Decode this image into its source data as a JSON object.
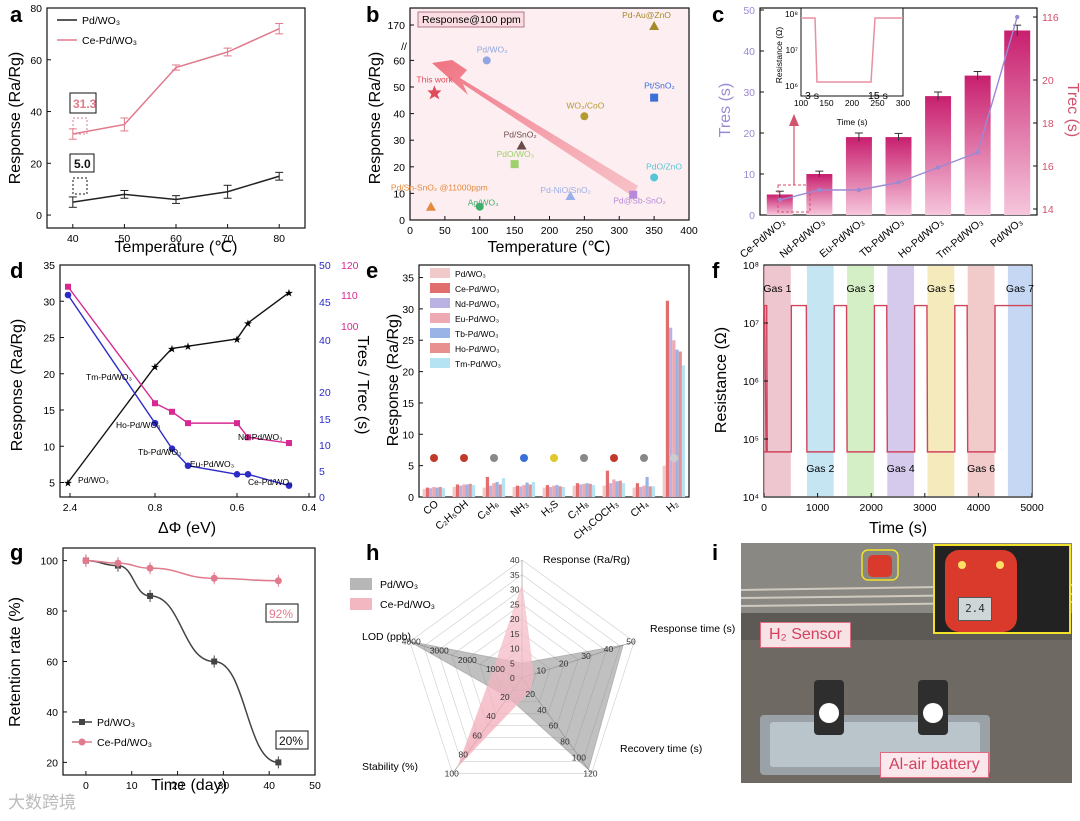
{
  "panels": {
    "a": "a",
    "b": "b",
    "c": "c",
    "d": "d",
    "e": "e",
    "f": "f",
    "g": "g",
    "h": "h",
    "i": "i"
  },
  "chart_data": [
    {
      "id": "a",
      "type": "line",
      "title": "",
      "xlabel": "Temperature (℃)",
      "ylabel": "Response (Ra/Rg)",
      "x": [
        40,
        50,
        60,
        70,
        80
      ],
      "xlim": [
        35,
        85
      ],
      "ylim": [
        -5,
        80
      ],
      "xticks": [
        "40",
        "50",
        "60",
        "70",
        "80"
      ],
      "yticks": [
        "0",
        "20",
        "40",
        "60",
        "80"
      ],
      "series": [
        {
          "name": "Pd/WO₃",
          "color": "#222222",
          "values": [
            5.0,
            8,
            6,
            9,
            15
          ],
          "errors": [
            2,
            1.5,
            1.5,
            2.5,
            1.5
          ]
        },
        {
          "name": "Ce-Pd/WO₃",
          "color": "#e07a8c",
          "values": [
            31.3,
            35,
            57,
            63,
            72
          ],
          "errors": [
            2,
            2.5,
            1,
            1.5,
            2
          ]
        }
      ],
      "annotations": [
        "31.3",
        "5.0"
      ]
    },
    {
      "id": "b",
      "type": "scatter",
      "title": "Response@100 ppm",
      "xlabel": "Temperature (℃)",
      "ylabel": "Response (Ra/Rg)",
      "xlim": [
        0,
        400
      ],
      "xticks": [
        "0",
        "50",
        "100",
        "150",
        "200",
        "250",
        "300",
        "350",
        "400"
      ],
      "yticks": [
        "0",
        "10",
        "20",
        "30",
        "40",
        "50",
        "60",
        "170"
      ],
      "points": [
        {
          "name": "This work",
          "x": 35,
          "y": 48,
          "color": "#e04b5a"
        },
        {
          "name": "Pd/WO₃",
          "x": 110,
          "y": 60,
          "color": "#8fa6e0"
        },
        {
          "name": "Pd-Au@ZnO",
          "x": 350,
          "y": 169,
          "color": "#a58a2b"
        },
        {
          "name": "Pt/SnO₂",
          "x": 350,
          "y": 46,
          "color": "#3c6fd8"
        },
        {
          "name": "WO₃/CoO",
          "x": 250,
          "y": 39,
          "color": "#b49b2f"
        },
        {
          "name": "Pd/SnO₂",
          "x": 160,
          "y": 28,
          "color": "#6b4a4a"
        },
        {
          "name": "PdO/WO₃",
          "x": 150,
          "y": 21,
          "color": "#9dcf6b"
        },
        {
          "name": "PdO/ZnO",
          "x": 350,
          "y": 16,
          "color": "#53c7d6"
        },
        {
          "name": "Pd-NiO/SnO₂",
          "x": 230,
          "y": 9,
          "color": "#9bb0e8"
        },
        {
          "name": "Pd@Sb-SnO₂",
          "x": 320,
          "y": 9.5,
          "color": "#b68ad8"
        },
        {
          "name": "Ag/WO₃",
          "x": 100,
          "y": 5,
          "color": "#3fae6a"
        },
        {
          "name": "Pd/Sn-SnO₂ @11000ppm",
          "x": 30,
          "y": 5,
          "color": "#e48a3f"
        }
      ]
    },
    {
      "id": "c",
      "type": "bar",
      "ylabel": "Tres (s)",
      "y2label": "Trec (s)",
      "categories": [
        "Ce-Pd/WO₃",
        "Nd-Pd/WO₃",
        "Eu-Pd/WO₃",
        "Tb-Pd/WO₃",
        "Ho-Pd/WO₃",
        "Tm-Pd/WO₃",
        "Pd/WO₃"
      ],
      "values": [
        5,
        10,
        19,
        19,
        29,
        34,
        45
      ],
      "errors": [
        0.8,
        0.7,
        1,
        0.9,
        1,
        1,
        1.3
      ],
      "line_values": [
        14.6,
        15.0,
        15.0,
        15.3,
        15.9,
        16.5,
        115
      ],
      "ylim": [
        0,
        50
      ],
      "yticks": [
        "0",
        "10",
        "20",
        "30",
        "40",
        "50"
      ],
      "y2ticks": [
        "14",
        "16",
        "18",
        "20",
        "116"
      ],
      "inset": {
        "ylabel": "Resistance (Ω)",
        "xlabel": "Time (s)",
        "xticks": [
          "100",
          "150",
          "200",
          "250",
          "300"
        ],
        "yticks": [
          "10⁶",
          "10⁷",
          "10⁸"
        ],
        "labels": [
          "3 s",
          "15 s"
        ]
      }
    },
    {
      "id": "d",
      "type": "line",
      "xlabel": "ΔΦ (eV)",
      "ylabel": "Response (Ra/Rg)",
      "y2label": "Tres / Trec (s)",
      "x": [
        2.4,
        0.8,
        0.76,
        0.72,
        0.6,
        0.58,
        0.45
      ],
      "xticks": [
        "2.4",
        "0.8",
        "0.6",
        "0.4"
      ],
      "series": [
        {
          "name": "Response",
          "color": "#111111",
          "values": [
            5,
            21,
            23.5,
            23.8,
            24.8,
            27,
            31.2
          ]
        },
        {
          "name": "Tres",
          "color": "#2b2bc8",
          "values": [
            46,
            13,
            8.5,
            5.5,
            4,
            4,
            2
          ]
        },
        {
          "name": "Trec",
          "color": "#d62a92",
          "values": [
            115,
            16.5,
            15,
            13,
            13,
            10.5,
            9.5
          ]
        }
      ],
      "labels": [
        "Pd/WO₃",
        "Tm-Pd/WO₃",
        "Ho-Pd/WO₃",
        "Tb-Pd/WO₃",
        "Eu-Pd/WO₃",
        "Nd-Pd/WO₃",
        "Ce-Pd/WO₃"
      ],
      "yticks": [
        "5",
        "10",
        "15",
        "20",
        "25",
        "30",
        "35"
      ],
      "y2ticks": [
        "0",
        "5",
        "10",
        "15",
        "20",
        "40",
        "45",
        "50"
      ],
      "y3ticks": [
        "100",
        "110",
        "120"
      ]
    },
    {
      "id": "e",
      "type": "bar",
      "ylabel": "Response (Ra/Rg)",
      "categories": [
        "CO",
        "C₂H₅OH",
        "C₆H₆",
        "NH₃",
        "H₂S",
        "C₇H₈",
        "CH₃COCH₃",
        "CH₄",
        "H₂"
      ],
      "ylim": [
        0,
        37
      ],
      "yticks": [
        "0",
        "5",
        "10",
        "15",
        "20",
        "25",
        "30",
        "35"
      ],
      "series": [
        {
          "name": "Pd/WO₃",
          "color": "#f2c9c9",
          "values": [
            1.3,
            1.6,
            1.5,
            1.6,
            1.5,
            1.8,
            1.8,
            1.5,
            5
          ]
        },
        {
          "name": "Ce-Pd/WO₃",
          "color": "#e26d6d",
          "values": [
            1.5,
            2.0,
            3.2,
            1.8,
            1.9,
            2.2,
            4.2,
            2.2,
            31.3
          ]
        },
        {
          "name": "Nd-Pd/WO₃",
          "color": "#b9b2e3",
          "values": [
            1.4,
            1.8,
            1.8,
            1.7,
            1.6,
            2.0,
            2.2,
            1.6,
            27
          ]
        },
        {
          "name": "Eu-Pd/WO₃",
          "color": "#eeaab2",
          "values": [
            1.6,
            2.0,
            2.2,
            1.9,
            1.8,
            2.1,
            2.8,
            1.8,
            25
          ]
        },
        {
          "name": "Tb-Pd/WO₃",
          "color": "#9ab3e6",
          "values": [
            1.5,
            2.0,
            2.4,
            2.3,
            1.9,
            2.2,
            2.5,
            3.2,
            23.5
          ]
        },
        {
          "name": "Ho-Pd/WO₃",
          "color": "#e89090",
          "values": [
            1.6,
            2.1,
            2.0,
            2.0,
            1.7,
            2.1,
            2.6,
            1.7,
            23.2
          ]
        },
        {
          "name": "Tm-Pd/WO₃",
          "color": "#b5e3f3",
          "values": [
            1.4,
            1.9,
            3.0,
            2.4,
            1.6,
            1.9,
            2.2,
            1.7,
            21
          ]
        }
      ]
    },
    {
      "id": "f",
      "type": "line",
      "xlabel": "Time (s)",
      "ylabel": "Resistance (Ω)",
      "xlim": [
        0,
        5000
      ],
      "xticks": [
        "0",
        "1000",
        "2000",
        "3000",
        "4000",
        "5000"
      ],
      "yticks": [
        "10⁴",
        "10⁵",
        "10⁶",
        "10⁷",
        "10⁸"
      ],
      "high_value": 20000000.0,
      "low_value": 60000.0,
      "gases": [
        "Gas 1",
        "Gas 2",
        "Gas 3",
        "Gas 4",
        "Gas 5",
        "Gas 6",
        "Gas 7"
      ],
      "gas_colors": [
        "#e8b3c0",
        "#b3dcef",
        "#c6e8b3",
        "#c8b8e6",
        "#f2e3a6",
        "#ecb8b8",
        "#b3c9ef"
      ]
    },
    {
      "id": "g",
      "type": "line",
      "xlabel": "Time (day)",
      "ylabel": "Retention rate (%)",
      "x": [
        0,
        7,
        14,
        28,
        42
      ],
      "xlim": [
        -5,
        50
      ],
      "ylim": [
        15,
        105
      ],
      "xticks": [
        "0",
        "10",
        "20",
        "30",
        "40",
        "50"
      ],
      "yticks": [
        "20",
        "40",
        "60",
        "80",
        "100"
      ],
      "series": [
        {
          "name": "Pd/WO₃",
          "color": "#444444",
          "values": [
            100,
            98,
            86,
            60,
            20
          ]
        },
        {
          "name": "Ce-Pd/WO₃",
          "color": "#e07a8c",
          "values": [
            100,
            99,
            97,
            93,
            92
          ]
        }
      ],
      "annotations": [
        "92%",
        "20%"
      ]
    },
    {
      "id": "h",
      "type": "radar",
      "axes": [
        "Response (Ra/Rg)",
        "Response time (s)",
        "Recovery time (s)",
        "Stability (%)",
        "LOD (ppb)"
      ],
      "series": [
        {
          "name": "Pd/WO₃",
          "color": "#777777",
          "values": [
            5,
            45,
            115,
            20,
            4000
          ]
        },
        {
          "name": "Ce-Pd/WO₃",
          "color": "#f2b7c1",
          "values": [
            31.3,
            5,
            15,
            92,
            1000
          ]
        }
      ],
      "ticks": {
        "response": [
          "0",
          "5",
          "10",
          "15",
          "20",
          "25",
          "30",
          "35",
          "40"
        ],
        "response_time": [
          "10",
          "20",
          "30",
          "40",
          "50"
        ],
        "recovery_time": [
          "20",
          "40",
          "60",
          "80",
          "100",
          "120"
        ],
        "stability": [
          "20",
          "40",
          "60",
          "80",
          "100"
        ],
        "lod": [
          "1000",
          "2000",
          "3000",
          "4000"
        ]
      }
    }
  ],
  "photo": {
    "h2_sensor_label": "H₂ Sensor",
    "battery_label": "Al-air battery",
    "display_value": "2.4"
  },
  "watermark": "大数跨境"
}
